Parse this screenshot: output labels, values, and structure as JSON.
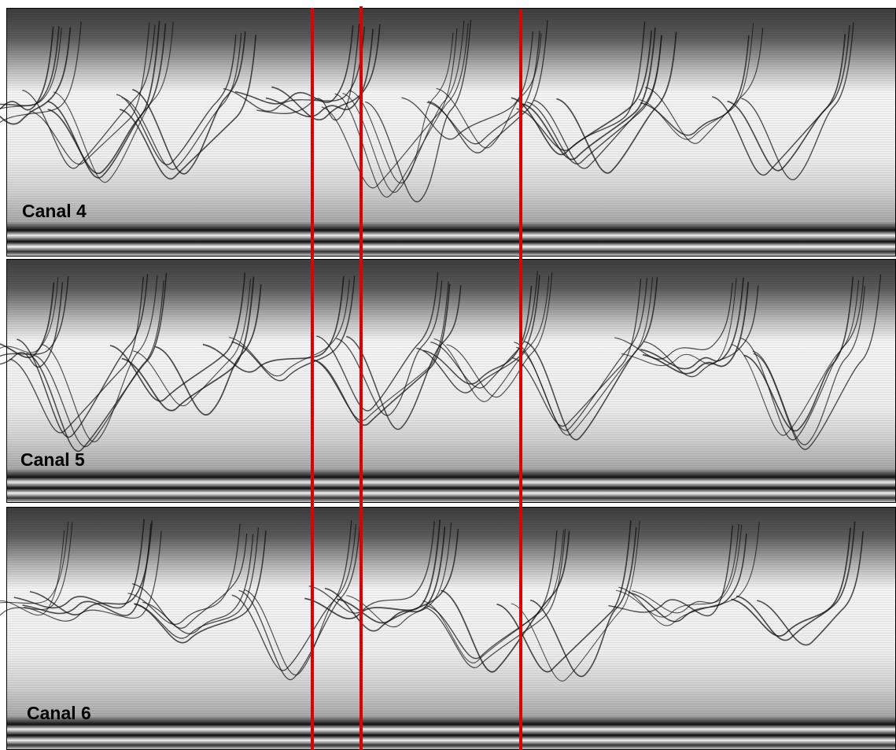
{
  "panels": [
    {
      "label": "Canal 4"
    },
    {
      "label": "Canal 5"
    },
    {
      "label": "Canal 6"
    }
  ]
}
